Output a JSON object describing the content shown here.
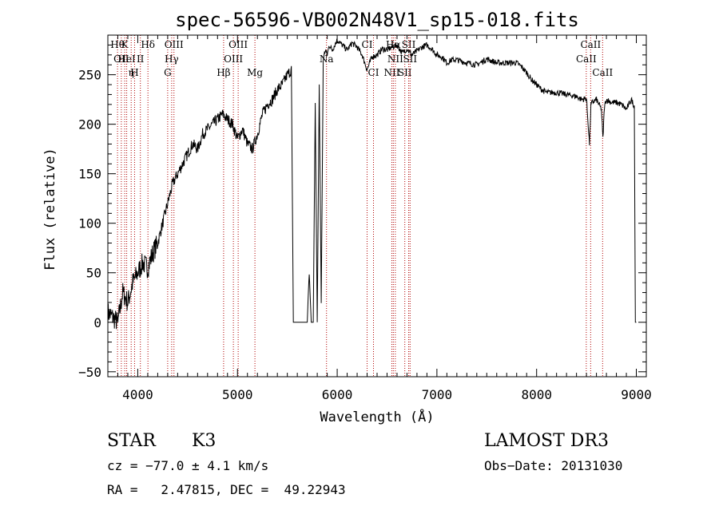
{
  "chart_data": {
    "type": "line",
    "title": "spec-56596-VB002N48V1_sp15-018.fits",
    "xlabel": "Wavelength (Å)",
    "ylabel": "Flux (relative)",
    "xlim": [
      3700,
      9100
    ],
    "ylim": [
      -55,
      290
    ],
    "x_ticks": [
      4000,
      5000,
      6000,
      7000,
      8000,
      9000
    ],
    "y_ticks": [
      -50,
      0,
      50,
      100,
      150,
      200,
      250
    ],
    "x_tick_labels": [
      "4000",
      "5000",
      "6000",
      "7000",
      "8000",
      "9000"
    ],
    "y_tick_labels": [
      "−50",
      "0",
      "50",
      "100",
      "150",
      "200",
      "250"
    ],
    "grid": false,
    "series": [
      {
        "x": [
          3700,
          3750,
          3800,
          3850,
          3900,
          3950,
          4000,
          4050,
          4100,
          4150,
          4200,
          4250,
          4300,
          4350,
          4400,
          4450,
          4500,
          4550,
          4600,
          4650,
          4700,
          4750,
          4800,
          4850,
          4900,
          4950,
          5000,
          5050,
          5100,
          5150,
          5200,
          5250,
          5300,
          5350,
          5400,
          5450,
          5500,
          5540,
          5560,
          5580,
          5600,
          5650,
          5700,
          5720,
          5740,
          5760,
          5780,
          5800,
          5820,
          5840,
          5860,
          5880,
          5900,
          5920,
          5950,
          6000,
          6050,
          6100,
          6150,
          6200,
          6250,
          6300,
          6350,
          6400,
          6450,
          6500,
          6550,
          6600,
          6650,
          6700,
          6750,
          6800,
          6850,
          6900,
          6950,
          7000,
          7050,
          7100,
          7150,
          7200,
          7300,
          7400,
          7500,
          7600,
          7700,
          7800,
          7850,
          7900,
          7950,
          8000,
          8050,
          8100,
          8200,
          8300,
          8400,
          8450,
          8500,
          8530,
          8545,
          8560,
          8600,
          8650,
          8665,
          8680,
          8700,
          8750,
          8800,
          8850,
          8900,
          8950,
          8980,
          8990,
          9000
        ],
        "y": [
          10,
          5,
          0,
          30,
          20,
          40,
          50,
          60,
          55,
          70,
          80,
          100,
          120,
          140,
          150,
          160,
          170,
          180,
          175,
          190,
          195,
          200,
          205,
          210,
          205,
          200,
          185,
          195,
          180,
          175,
          190,
          210,
          220,
          225,
          235,
          240,
          250,
          255,
          0,
          0,
          0,
          0,
          0,
          50,
          0,
          0,
          220,
          0,
          240,
          20,
          265,
          275,
          270,
          280,
          275,
          285,
          280,
          275,
          282,
          278,
          270,
          255,
          268,
          270,
          276,
          275,
          278,
          280,
          272,
          276,
          270,
          274,
          278,
          280,
          276,
          270,
          268,
          262,
          265,
          265,
          262,
          260,
          266,
          262,
          262,
          262,
          258,
          252,
          245,
          240,
          235,
          232,
          232,
          230,
          228,
          225,
          226,
          180,
          220,
          222,
          225,
          215,
          185,
          218,
          225,
          222,
          222,
          220,
          215,
          225,
          218,
          0,
          0
        ]
      }
    ],
    "line_marks": [
      {
        "x": 3797,
        "label": "Hθ",
        "row": 1
      },
      {
        "x": 3835,
        "label": "ΟΙΙ",
        "row": 2
      },
      {
        "x": 3869,
        "label": "K",
        "row": 1
      },
      {
        "x": 3889,
        "label": "ΗeΙ",
        "row": 2
      },
      {
        "x": 3934,
        "label": "η",
        "row": 3
      },
      {
        "x": 3968,
        "label": "H",
        "row": 3
      },
      {
        "x": 4026,
        "label": "ΙΙ",
        "row": 2
      },
      {
        "x": 4102,
        "label": "Hδ",
        "row": 1
      },
      {
        "x": 4300,
        "label": "G",
        "row": 3
      },
      {
        "x": 4340,
        "label": "Hγ",
        "row": 2
      },
      {
        "x": 4363,
        "label": "OIII",
        "row": 1
      },
      {
        "x": 4861,
        "label": "Hβ",
        "row": 3
      },
      {
        "x": 4959,
        "label": "OIII",
        "row": 2
      },
      {
        "x": 5007,
        "label": "OIII",
        "row": 1
      },
      {
        "x": 5175,
        "label": "Mg",
        "row": 3
      },
      {
        "x": 5893,
        "label": "Na",
        "row": 2
      },
      {
        "x": 6300,
        "label": "CI",
        "row": 1
      },
      {
        "x": 6364,
        "label": "CI",
        "row": 3
      },
      {
        "x": 6548,
        "label": "ΝΙΙ",
        "row": 3
      },
      {
        "x": 6563,
        "label": "Hα",
        "row": 1
      },
      {
        "x": 6583,
        "label": "ΝΙΙ",
        "row": 2
      },
      {
        "x": 6678,
        "label": "SII",
        "row": 3
      },
      {
        "x": 6717,
        "label": "SII",
        "row": 1
      },
      {
        "x": 6731,
        "label": "SII",
        "row": 2
      },
      {
        "x": 8498,
        "label": "CaII",
        "row": 2
      },
      {
        "x": 8542,
        "label": "CaII",
        "row": 1
      },
      {
        "x": 8662,
        "label": "CaII",
        "row": 3
      }
    ]
  },
  "info": {
    "class_label": "STAR",
    "subclass": "K3",
    "survey": "LAMOST DR3",
    "cz": "cz = −77.0 ± 4.1 km/s",
    "obs_date": "Obs−Date: 20131030",
    "coords": "RA =   2.47815, DEC =  49.22943"
  },
  "colors": {
    "spectrum": "#000000",
    "line_marker": "#b00000",
    "axes": "#000000"
  }
}
